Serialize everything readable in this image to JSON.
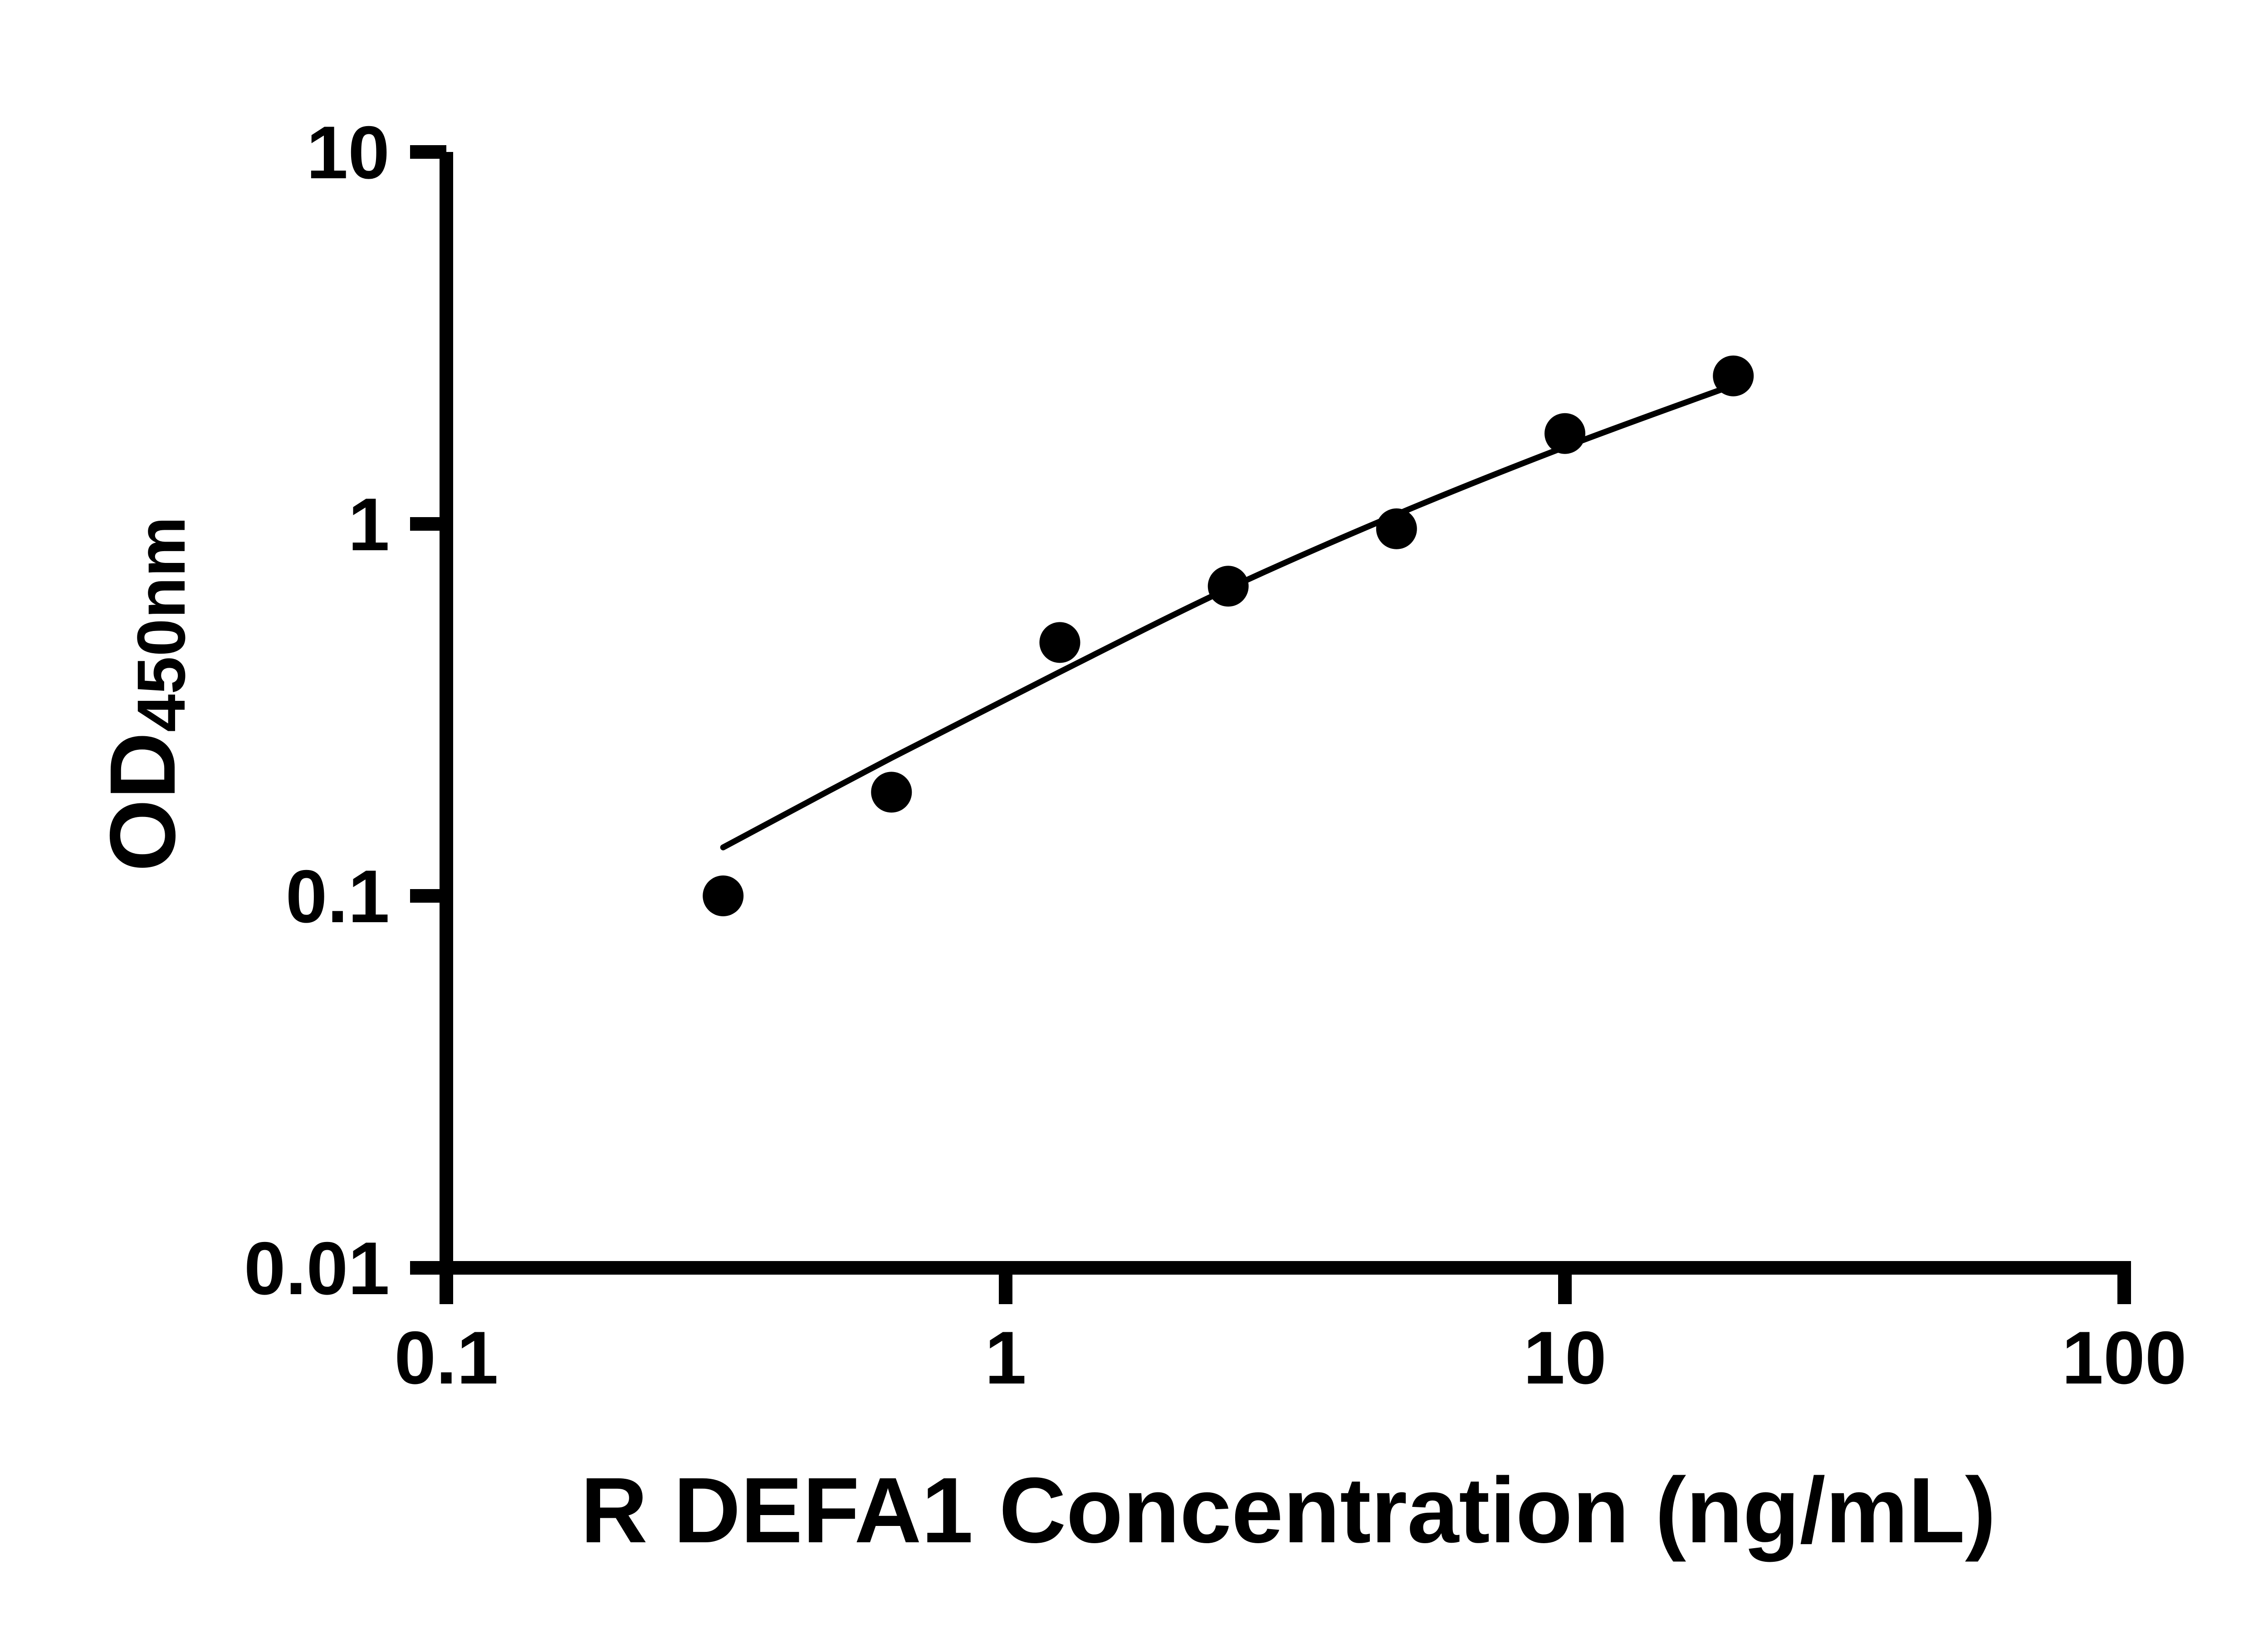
{
  "figure": {
    "background_color": "#ffffff",
    "axis_color": "#000000",
    "marker_color": "#000000",
    "curve_color": "#000000"
  },
  "chart_data": {
    "type": "scatter",
    "title": "",
    "xlabel": "R DEFA1 Concentration (ng/mL)",
    "ylabel": {
      "main": "OD",
      "subscript": "450nm"
    },
    "x_scale": "log",
    "y_scale": "log",
    "xlim": [
      0.1,
      100
    ],
    "ylim": [
      0.01,
      10
    ],
    "x_ticks": [
      {
        "value": 0.1,
        "label": "0.1"
      },
      {
        "value": 1,
        "label": "1"
      },
      {
        "value": 10,
        "label": "10"
      },
      {
        "value": 100,
        "label": "100"
      }
    ],
    "y_ticks": [
      {
        "value": 0.01,
        "label": "0.01"
      },
      {
        "value": 0.1,
        "label": "0.1"
      },
      {
        "value": 1,
        "label": "1"
      },
      {
        "value": 10,
        "label": "10"
      }
    ],
    "grid": false,
    "legend": null,
    "series": [
      {
        "name": "standard-points",
        "type": "scatter",
        "x": [
          0.3125,
          0.625,
          1.25,
          2.5,
          5,
          10,
          20
        ],
        "y": [
          0.1,
          0.19,
          0.48,
          0.68,
          0.97,
          1.75,
          2.5
        ]
      },
      {
        "name": "fit-curve",
        "type": "line",
        "x": [
          0.3125,
          0.625,
          1.25,
          2.5,
          5,
          10,
          20
        ],
        "y": [
          0.135,
          0.235,
          0.4,
          0.67,
          1.06,
          1.61,
          2.36
        ]
      }
    ]
  }
}
